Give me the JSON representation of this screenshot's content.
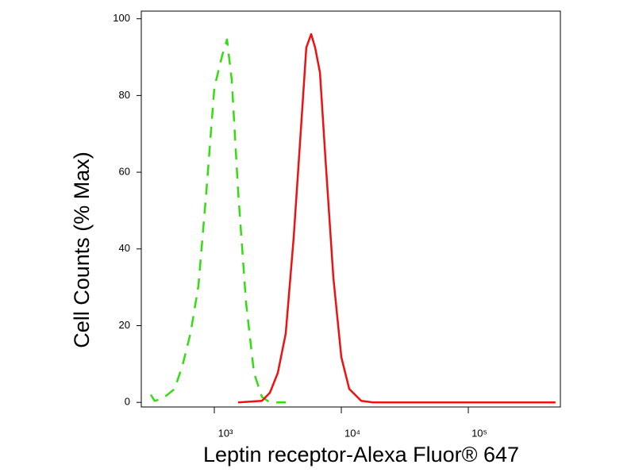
{
  "chart_data": {
    "type": "line",
    "x_scale": "log",
    "xlabel": "Leptin receptor-Alexa Fluor® 647",
    "ylabel": "Cell Counts (% Max)",
    "xlim": [
      266,
      531000
    ],
    "ylim": [
      -1.2,
      102
    ],
    "xticks": [
      {
        "value": 1000,
        "label": "10³"
      },
      {
        "value": 10000,
        "label": "10⁴"
      },
      {
        "value": 100000,
        "label": "10⁵"
      }
    ],
    "yticks": [
      0,
      20,
      40,
      60,
      80,
      100
    ],
    "series": [
      {
        "color": "#33dd11",
        "dash": true,
        "x": [
          316,
          339,
          392,
          487,
          562,
          649,
          750,
          866,
          1000,
          1155,
          1259,
          1372,
          1540,
          1778,
          2054,
          2371,
          2738,
          3652
        ],
        "values": [
          2,
          0.4,
          1,
          3.5,
          9.7,
          18,
          30.4,
          55,
          82,
          90.5,
          94.6,
          84,
          55,
          26,
          7.7,
          1.4,
          0,
          0
        ]
      },
      {
        "color": "#ee1111",
        "dash": false,
        "x": [
          1540,
          2371,
          2738,
          3162,
          3652,
          4217,
          4870,
          5302,
          5790,
          6222,
          6790,
          7499,
          8660,
          10000,
          11548,
          14330,
          17783,
          486000
        ],
        "values": [
          0,
          0.4,
          2.5,
          7.7,
          18,
          43,
          74,
          92.5,
          96,
          92.5,
          86,
          63.6,
          32.5,
          11.8,
          3.5,
          0.4,
          0,
          0
        ]
      }
    ]
  }
}
